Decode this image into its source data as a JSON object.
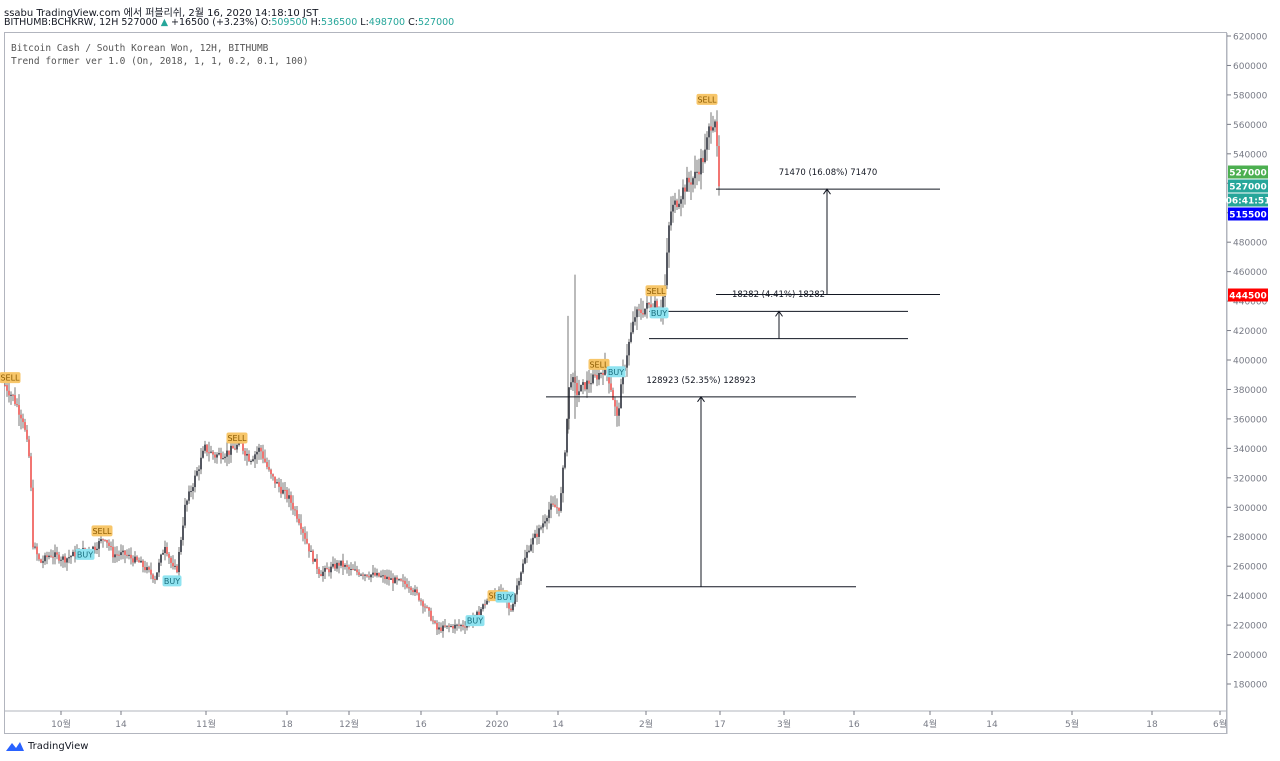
{
  "header": {
    "line1": "ssabu TradingView.com 에서 퍼블리쉬, 2월 16, 2020 14:18:10 JST",
    "symbol_info": "BITHUMB:BCHKRW, 12H 527000",
    "change": "+16500 (+3.23%)",
    "o_label": "O:",
    "o_value": "509500",
    "h_label": "H:",
    "h_value": "536500",
    "l_label": "L:",
    "l_value": "498700",
    "c_label": "C:",
    "c_value": "527000"
  },
  "legend": {
    "title": "Bitcoin Cash / South Korean Won, 12H, BITHUMB",
    "indicator": "Trend former ver 1.0 (On, 2018, 1, 1, 0.2, 0.1, 100)"
  },
  "branding": {
    "name": "TradingView"
  },
  "colors": {
    "up": "#26a69a",
    "down": "#ef5350",
    "candle": "#131722",
    "sell": "#f7c66a",
    "buy": "#8fe3f0",
    "last_green": "#4caf50",
    "last_teal": "#26a69a",
    "blue_tag": "#0000ff",
    "red_tag": "#ff0000",
    "axis": "#787b86"
  },
  "chart_data": {
    "type": "candlestick",
    "price_axis": {
      "ylim": [
        170000,
        622000
      ],
      "ticks": [
        180000,
        200000,
        220000,
        240000,
        260000,
        280000,
        300000,
        320000,
        340000,
        360000,
        380000,
        400000,
        420000,
        440000,
        460000,
        480000,
        500000,
        520000,
        540000,
        560000,
        580000,
        600000,
        620000
      ],
      "tick_labels": [
        "180000",
        "200000",
        "220000",
        "240000",
        "260000",
        "280000",
        "300000",
        "320000",
        "340000",
        "360000",
        "380000",
        "400000",
        "420000",
        "440000",
        "460000",
        "480000",
        "500000",
        "520000",
        "540000",
        "560000",
        "580000",
        "600000",
        "620000"
      ]
    },
    "time_axis": {
      "labels": [
        "10월",
        "14",
        "11월",
        "18",
        "12월",
        "16",
        "2020",
        "14",
        "2월",
        "17",
        "3월",
        "16",
        "4월",
        "14",
        "5월",
        "18",
        "6월"
      ]
    },
    "price_tags": [
      {
        "value": 527000,
        "label": "527000",
        "color": "#4caf50"
      },
      {
        "value": 527000,
        "label": "527000",
        "color": "#26a69a"
      },
      {
        "value": 516900,
        "label": "06:41:51",
        "color": "#26a69a"
      },
      {
        "value": 515500,
        "label": "515500",
        "color": "#0000ff"
      },
      {
        "value": 444500,
        "label": "444500",
        "color": "#ff0000"
      }
    ],
    "close_path": [
      [
        0,
        383000
      ],
      [
        8,
        375000
      ],
      [
        18,
        360000
      ],
      [
        25,
        330000
      ],
      [
        28,
        275000
      ],
      [
        35,
        262000
      ],
      [
        45,
        268000
      ],
      [
        60,
        265000
      ],
      [
        75,
        270000
      ],
      [
        90,
        273000
      ],
      [
        100,
        280000
      ],
      [
        108,
        268000
      ],
      [
        120,
        268000
      ],
      [
        135,
        262000
      ],
      [
        150,
        252000
      ],
      [
        160,
        275000
      ],
      [
        168,
        258000
      ],
      [
        172,
        258000
      ],
      [
        180,
        300000
      ],
      [
        190,
        320000
      ],
      [
        200,
        340000
      ],
      [
        210,
        335000
      ],
      [
        225,
        338000
      ],
      [
        235,
        343000
      ],
      [
        245,
        333000
      ],
      [
        255,
        340000
      ],
      [
        265,
        322000
      ],
      [
        275,
        313000
      ],
      [
        285,
        305000
      ],
      [
        295,
        290000
      ],
      [
        305,
        270000
      ],
      [
        315,
        255000
      ],
      [
        325,
        258000
      ],
      [
        335,
        262000
      ],
      [
        345,
        257000
      ],
      [
        360,
        255000
      ],
      [
        375,
        253000
      ],
      [
        390,
        250000
      ],
      [
        405,
        247000
      ],
      [
        420,
        233000
      ],
      [
        432,
        217000
      ],
      [
        445,
        219000
      ],
      [
        460,
        220000
      ],
      [
        470,
        225000
      ],
      [
        480,
        235000
      ],
      [
        490,
        243000
      ],
      [
        500,
        240000
      ],
      [
        505,
        228000
      ],
      [
        515,
        255000
      ],
      [
        525,
        275000
      ],
      [
        535,
        285000
      ],
      [
        545,
        300000
      ],
      [
        555,
        300000
      ],
      [
        560,
        340000
      ],
      [
        565,
        390000
      ],
      [
        572,
        378000
      ],
      [
        580,
        383000
      ],
      [
        590,
        388000
      ],
      [
        600,
        395000
      ],
      [
        605,
        385000
      ],
      [
        612,
        360000
      ],
      [
        618,
        390000
      ],
      [
        622,
        405000
      ],
      [
        630,
        430000
      ],
      [
        640,
        435000
      ],
      [
        650,
        440000
      ],
      [
        655,
        432000
      ],
      [
        660,
        450000
      ],
      [
        665,
        500000
      ],
      [
        672,
        508000
      ],
      [
        680,
        518000
      ],
      [
        690,
        525000
      ],
      [
        700,
        540000
      ],
      [
        705,
        560000
      ],
      [
        710,
        565000
      ],
      [
        714,
        515500
      ]
    ],
    "signals": [
      {
        "type": "SELL",
        "x": 5,
        "price": 388000
      },
      {
        "type": "SELL",
        "x": 97,
        "price": 284000
      },
      {
        "type": "BUY",
        "x": 80,
        "price": 268000
      },
      {
        "type": "BUY",
        "x": 167,
        "price": 250000
      },
      {
        "type": "SELL",
        "x": 232,
        "price": 347000
      },
      {
        "type": "BUY",
        "x": 470,
        "price": 223000
      },
      {
        "type": "SELL",
        "x": 493,
        "price": 240000
      },
      {
        "type": "BUY",
        "x": 500,
        "price": 239000
      },
      {
        "type": "SELL",
        "x": 594,
        "price": 397000
      },
      {
        "type": "BUY",
        "x": 611,
        "price": 392000
      },
      {
        "type": "SELL",
        "x": 651,
        "price": 447000
      },
      {
        "type": "BUY",
        "x": 654,
        "price": 432000
      },
      {
        "type": "SELL",
        "x": 702,
        "price": 577000
      }
    ],
    "measurements": [
      {
        "label": "128923 (52.35%) 128923",
        "low": 246000,
        "high": 375000
      },
      {
        "label": "18282 (4.41%) 18282",
        "low": 414500,
        "high": 433000
      },
      {
        "label": "71470 (16.08%) 71470",
        "low": 444500,
        "high": 516000
      }
    ]
  }
}
